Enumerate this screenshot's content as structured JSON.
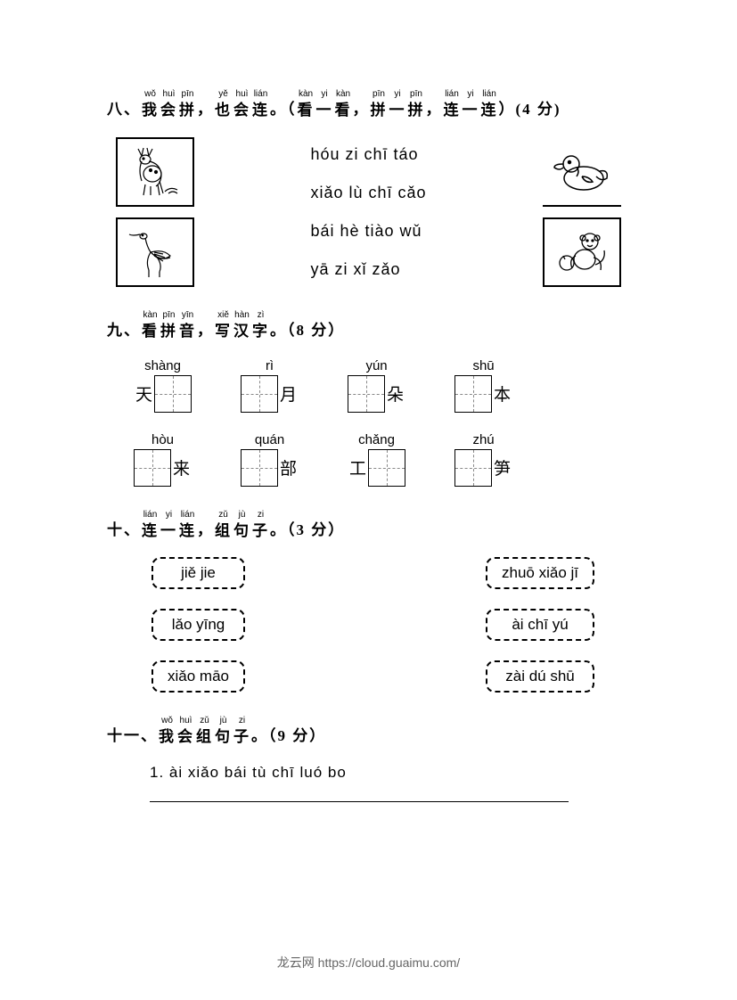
{
  "section8": {
    "number": "八、",
    "title_parts": [
      {
        "py": "wǒ",
        "hz": "我"
      },
      {
        "py": "huì",
        "hz": "会"
      },
      {
        "py": "pīn",
        "hz": "拼"
      },
      {
        "hz": "，"
      },
      {
        "py": "yě",
        "hz": "也"
      },
      {
        "py": "huì",
        "hz": "会"
      },
      {
        "py": "lián",
        "hz": "连"
      },
      {
        "hz": "。（"
      },
      {
        "py": "kàn",
        "hz": "看"
      },
      {
        "py": "yi",
        "hz": "一"
      },
      {
        "py": "kàn",
        "hz": "看"
      },
      {
        "hz": "，"
      },
      {
        "py": "pīn",
        "hz": "拼"
      },
      {
        "py": "yi",
        "hz": "一"
      },
      {
        "py": "pīn",
        "hz": "拼"
      },
      {
        "hz": "，"
      },
      {
        "py": "lián",
        "hz": "连"
      },
      {
        "py": "yi",
        "hz": "一"
      },
      {
        "py": "lián",
        "hz": "连"
      },
      {
        "hz": "）(4 分)"
      }
    ],
    "left_images": [
      "deer",
      "crane"
    ],
    "right_images": [
      "duck",
      "monkey"
    ],
    "phrases": [
      "hóu zi chī táo",
      "xiǎo lù chī cǎo",
      "bái hè tiào wǔ",
      "yā zi xǐ zǎo"
    ]
  },
  "section9": {
    "number": "九、",
    "title_parts": [
      {
        "py": "kàn",
        "hz": "看"
      },
      {
        "py": "pīn",
        "hz": "拼"
      },
      {
        "py": "yīn",
        "hz": "音"
      },
      {
        "hz": "，"
      },
      {
        "py": "xiě",
        "hz": "写"
      },
      {
        "py": "hàn",
        "hz": "汉"
      },
      {
        "py": "zì",
        "hz": "字"
      },
      {
        "hz": "。（8 分）"
      }
    ],
    "row1": [
      {
        "pinyin": "shàng",
        "prefix": "天",
        "suffix": ""
      },
      {
        "pinyin": "rì",
        "prefix": "",
        "suffix": "月"
      },
      {
        "pinyin": "yún",
        "prefix": "",
        "suffix": "朵"
      },
      {
        "pinyin": "shū",
        "prefix": "",
        "suffix": "本"
      }
    ],
    "row2": [
      {
        "pinyin": "hòu",
        "prefix": "",
        "suffix": "来"
      },
      {
        "pinyin": "quán",
        "prefix": "",
        "suffix": "部"
      },
      {
        "pinyin": "chǎng",
        "prefix": "工",
        "suffix": ""
      },
      {
        "pinyin": "zhú",
        "prefix": "",
        "suffix": "笋"
      }
    ]
  },
  "section10": {
    "number": "十、",
    "title_parts": [
      {
        "py": "lián",
        "hz": "连"
      },
      {
        "py": "yi",
        "hz": "一"
      },
      {
        "py": "lián",
        "hz": "连"
      },
      {
        "hz": "，"
      },
      {
        "py": "zǔ",
        "hz": "组"
      },
      {
        "py": "jù",
        "hz": "句"
      },
      {
        "py": "zi",
        "hz": "子"
      },
      {
        "hz": "。（3 分）"
      }
    ],
    "left": [
      "jiě jie",
      "lǎo yīng",
      "xiǎo māo"
    ],
    "right": [
      "zhuō xiǎo jī",
      "ài chī yú",
      "zài dú shū"
    ]
  },
  "section11": {
    "number": "十一、",
    "title_parts": [
      {
        "py": "wǒ",
        "hz": "我"
      },
      {
        "py": "huì",
        "hz": "会"
      },
      {
        "py": "zǔ",
        "hz": "组"
      },
      {
        "py": "jù",
        "hz": "句"
      },
      {
        "py": "zi",
        "hz": "子"
      },
      {
        "hz": "。（9 分）"
      }
    ],
    "item1": "1. ài   xiǎo bái tù   chī   luó bo"
  },
  "footer": "龙云网 https://cloud.guaimu.com/"
}
